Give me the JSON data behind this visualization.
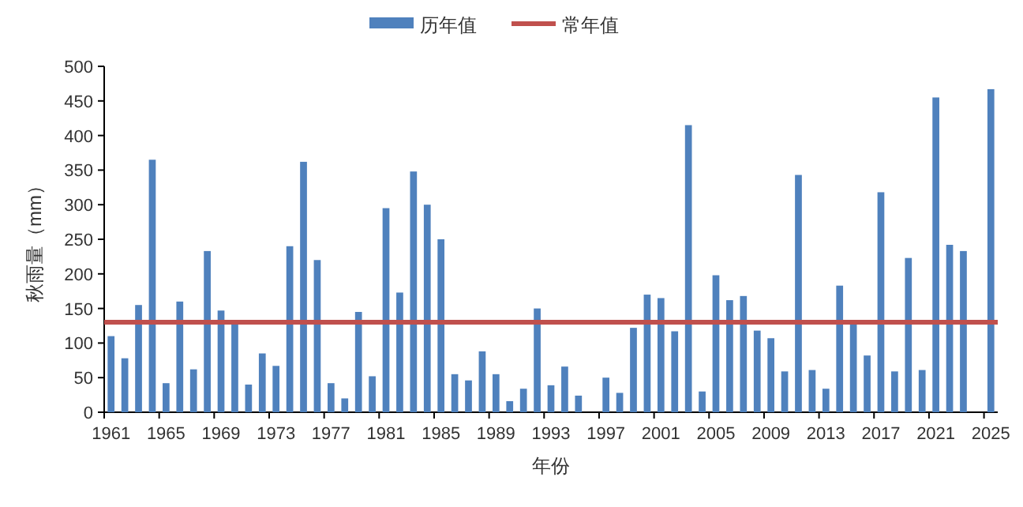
{
  "chart_data": {
    "type": "bar",
    "xlabel": "年份",
    "ylabel": "秋雨量（mm）",
    "categories": [
      "1961",
      null,
      null,
      null,
      "1965",
      null,
      null,
      null,
      "1969",
      null,
      null,
      null,
      "1973",
      null,
      null,
      null,
      "1977",
      null,
      null,
      null,
      "1981",
      null,
      null,
      null,
      "1985",
      null,
      null,
      null,
      "1989",
      null,
      null,
      null,
      "1993",
      null,
      null,
      null,
      "1997",
      null,
      null,
      null,
      "2001",
      null,
      null,
      null,
      "2005",
      null,
      null,
      null,
      "2009",
      null,
      null,
      null,
      "2013",
      null,
      null,
      null,
      "2017",
      null,
      null,
      null,
      "2021",
      null,
      null,
      null,
      "2025"
    ],
    "series": [
      {
        "name": "历年值",
        "color": "#4f81bd",
        "values": [
          110,
          78,
          155,
          365,
          42,
          160,
          62,
          233,
          147,
          130,
          40,
          85,
          67,
          240,
          362,
          220,
          42,
          20,
          145,
          52,
          295,
          173,
          348,
          300,
          250,
          55,
          46,
          88,
          55,
          16,
          34,
          150,
          39,
          66,
          24,
          null,
          50,
          28,
          122,
          170,
          165,
          117,
          415,
          30,
          198,
          162,
          168,
          118,
          107,
          59,
          343,
          61,
          34,
          183,
          129,
          82,
          318,
          59,
          223,
          61,
          455,
          242,
          233,
          null,
          467
        ]
      }
    ],
    "ref_lines": [
      {
        "axis": "y",
        "value": 130,
        "label": "常年值",
        "color": "#c0504d"
      }
    ],
    "ylim": [
      0,
      500
    ],
    "yticks": [
      0,
      50,
      100,
      150,
      200,
      250,
      300,
      350,
      400,
      450,
      500
    ],
    "grid": false,
    "legend": "top"
  }
}
